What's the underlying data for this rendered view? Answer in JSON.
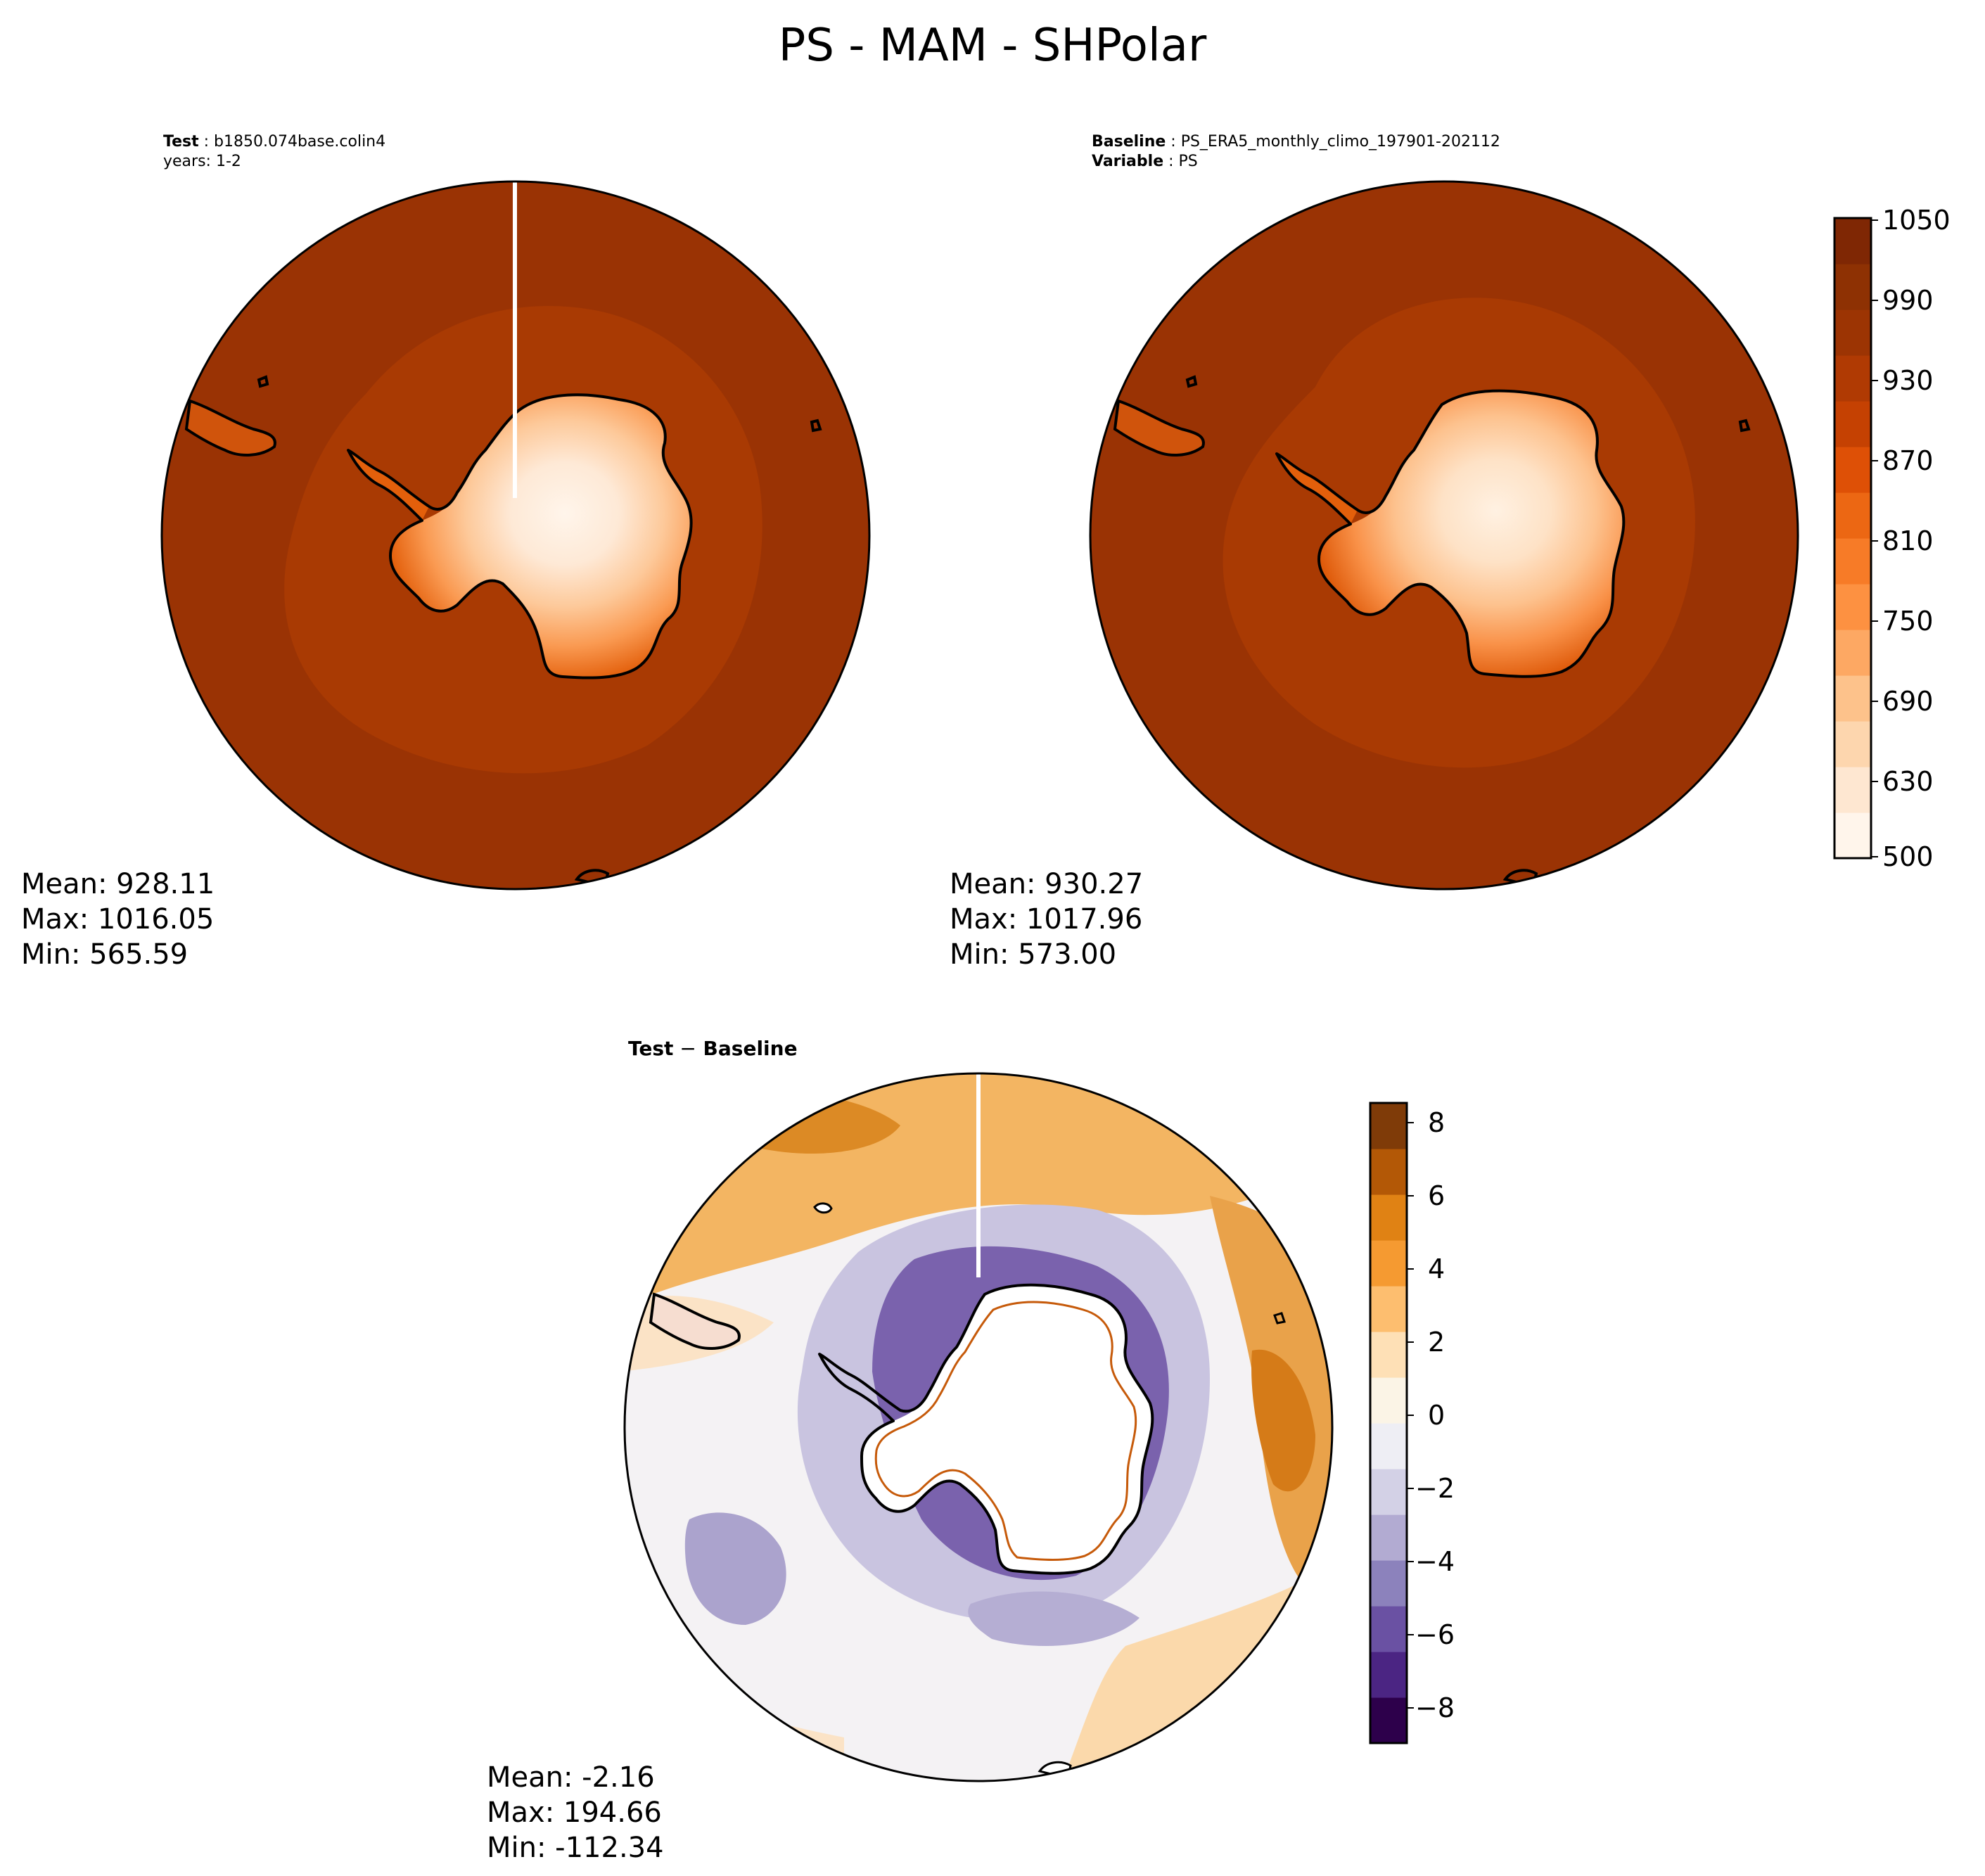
{
  "figure": {
    "title": "PS - MAM - SHPolar"
  },
  "panels": {
    "test": {
      "label_key": "Test",
      "label_value": "b1850.074base.colin4",
      "years": "years: 1-2",
      "stats": {
        "mean": "Mean: 928.11",
        "max": "Max: 1016.05",
        "min": "Min: 565.59"
      }
    },
    "baseline": {
      "label_key": "Baseline",
      "label_value": "PS_ERA5_monthly_climo_197901-202112",
      "variable_key": "Variable",
      "variable_value": "PS",
      "stats": {
        "mean": "Mean: 930.27",
        "max": "Max: 1017.96",
        "min": "Min: 573.00"
      }
    },
    "diff": {
      "title_left": "Test",
      "title_op": "−",
      "title_right": "Baseline",
      "stats": {
        "mean": "Mean: -2.16",
        "max": "Max: 194.66",
        "min": "Min: -112.34"
      }
    }
  },
  "colorbars": {
    "top": {
      "ticks": [
        "1050",
        "990",
        "930",
        "870",
        "810",
        "750",
        "690",
        "630",
        "500"
      ],
      "colors": [
        "#fff5eb",
        "#fee7d1",
        "#fdd6ae",
        "#fdc28b",
        "#fda863",
        "#fd9141",
        "#f77b27",
        "#ec6713",
        "#de5006",
        "#c54102",
        "#b03a03",
        "#9c3403",
        "#8e3103",
        "#7f2704"
      ]
    },
    "diff": {
      "ticks": [
        "8",
        "6",
        "4",
        "2",
        "0",
        "−2",
        "−4",
        "−6",
        "−8"
      ],
      "colors": [
        "#2d004b",
        "#4b2583",
        "#6a51a3",
        "#8c82bc",
        "#b2abd2",
        "#d3d1e6",
        "#eeeef4",
        "#fbf4e6",
        "#fee0b6",
        "#fdbe6f",
        "#f59a31",
        "#e08214",
        "#b35806",
        "#7f3b08"
      ]
    }
  },
  "maps": {
    "ocean_color_test": "#9a3304",
    "ocean_color_baseline": "#9a3304",
    "inner_ring_color": "#a93a03",
    "land_colors": [
      "#c54102",
      "#e35f0b",
      "#fa8a3a",
      "#fdb57e",
      "#fdd2a9",
      "#fee9d6",
      "#fff5eb"
    ],
    "diff_colors": {
      "warm_dark": "#d8821e",
      "warm": "#f3b562",
      "warm_light": "#fce2c0",
      "neutral": "#f4f2f4",
      "cool_light": "#dcdbec",
      "cool": "#a69dc8",
      "cool_dark": "#5c3d97"
    }
  }
}
